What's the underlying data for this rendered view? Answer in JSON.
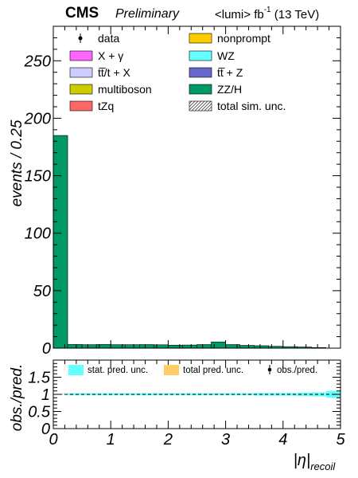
{
  "header": {
    "cms": "CMS",
    "preliminary": "Preliminary",
    "lumi_prefix": "<lumi> fb",
    "lumi_exp": "-1",
    "lumi_suffix": " (13 TeV)"
  },
  "chart_data": [
    {
      "type": "bar",
      "subtype": "stacked-histogram",
      "ylabel": "events / 0.25",
      "xlim": [
        0,
        5
      ],
      "ylim": [
        0,
        280
      ],
      "yticks": [
        0,
        50,
        100,
        150,
        200,
        250
      ],
      "bin_edges": [
        0,
        0.25,
        0.5,
        0.75,
        1.0,
        1.25,
        1.5,
        1.75,
        2.0,
        2.25,
        2.5,
        2.75,
        3.0,
        3.25,
        3.5,
        3.75,
        4.0,
        4.25,
        4.5,
        4.75,
        5.0
      ],
      "series": [
        {
          "name": "ZZ/H",
          "color": "#009966",
          "values": [
            185,
            3.2,
            3.0,
            3.2,
            3.0,
            3.0,
            3.1,
            2.9,
            2.6,
            2.7,
            3.1,
            5.4,
            3.1,
            2.4,
            2.1,
            1.6,
            1.3,
            1.0,
            0.5,
            0
          ]
        },
        {
          "name": "tt̅ + Z",
          "color": "#6666cc",
          "values": []
        },
        {
          "name": "WZ",
          "color": "#66ffff",
          "values": []
        },
        {
          "name": "nonprompt",
          "color": "#ffcc00",
          "values": []
        },
        {
          "name": "tZq",
          "color": "#ff6666",
          "values": []
        },
        {
          "name": "multiboson",
          "color": "#cccc00",
          "values": []
        },
        {
          "name": "tt̅/t + X",
          "color": "#ccccff",
          "values": []
        },
        {
          "name": "X +  γ",
          "color": "#ff66ff",
          "values": []
        }
      ],
      "legend": {
        "placement": "top",
        "entries": [
          {
            "label": "data",
            "style": "marker"
          },
          {
            "label": "nonprompt",
            "style": "fill",
            "color": "#ffcc00"
          },
          {
            "label": "X +  γ",
            "style": "fill",
            "color": "#ff66ff"
          },
          {
            "label": "WZ",
            "style": "fill",
            "color": "#66ffff"
          },
          {
            "label": "tt̅/t + X",
            "style": "fill",
            "color": "#ccccff"
          },
          {
            "label": "tt̅ + Z",
            "style": "fill",
            "color": "#6666cc"
          },
          {
            "label": "multiboson",
            "style": "fill",
            "color": "#cccc00"
          },
          {
            "label": "ZZ/H",
            "style": "fill",
            "color": "#009966"
          },
          {
            "label": "tZq",
            "style": "fill",
            "color": "#ff6666"
          },
          {
            "label": "total sim. unc.",
            "style": "hatch"
          }
        ]
      }
    },
    {
      "type": "line",
      "subtype": "ratio",
      "ylabel": "obs./pred.",
      "xlabel": "|η|",
      "xlabel_sub": "recoil",
      "xlim": [
        0,
        5
      ],
      "ylim": [
        0,
        2
      ],
      "yticks": [
        0,
        0.5,
        1,
        1.5
      ],
      "yticklabels": [
        "0",
        "0.5",
        "1",
        "1.5"
      ],
      "xticks": [
        0,
        1,
        2,
        3,
        4,
        5
      ],
      "reference_line": 1,
      "series": [
        {
          "name": "stat. pred. unc.",
          "color": "#66ffff",
          "bins": [
            0,
            0.25,
            0.5,
            0.75,
            1.0,
            1.25,
            1.5,
            1.75,
            2.0,
            2.25,
            2.5,
            2.75,
            3.0,
            3.25,
            3.5,
            3.75,
            4.0,
            4.25,
            4.5,
            4.75,
            5.0
          ],
          "low": [
            0.99,
            0.97,
            0.97,
            0.97,
            0.97,
            0.97,
            0.97,
            0.97,
            0.97,
            0.97,
            0.97,
            0.97,
            0.97,
            0.97,
            0.96,
            0.96,
            0.96,
            0.95,
            0.94,
            0.9
          ],
          "high": [
            1.01,
            1.03,
            1.03,
            1.03,
            1.03,
            1.03,
            1.03,
            1.03,
            1.03,
            1.03,
            1.03,
            1.03,
            1.03,
            1.03,
            1.04,
            1.04,
            1.04,
            1.05,
            1.06,
            1.1
          ]
        },
        {
          "name": "total pred. unc.",
          "color": "#ffcc66",
          "bins": [],
          "low": [],
          "high": []
        },
        {
          "name": "obs./pred.",
          "style": "marker",
          "values": []
        }
      ],
      "legend": {
        "placement": "top",
        "entries": [
          {
            "label": "stat. pred. unc.",
            "color": "#66ffff"
          },
          {
            "label": "total pred. unc.",
            "color": "#ffcc66"
          },
          {
            "label": "obs./pred.",
            "style": "marker"
          }
        ]
      }
    }
  ]
}
